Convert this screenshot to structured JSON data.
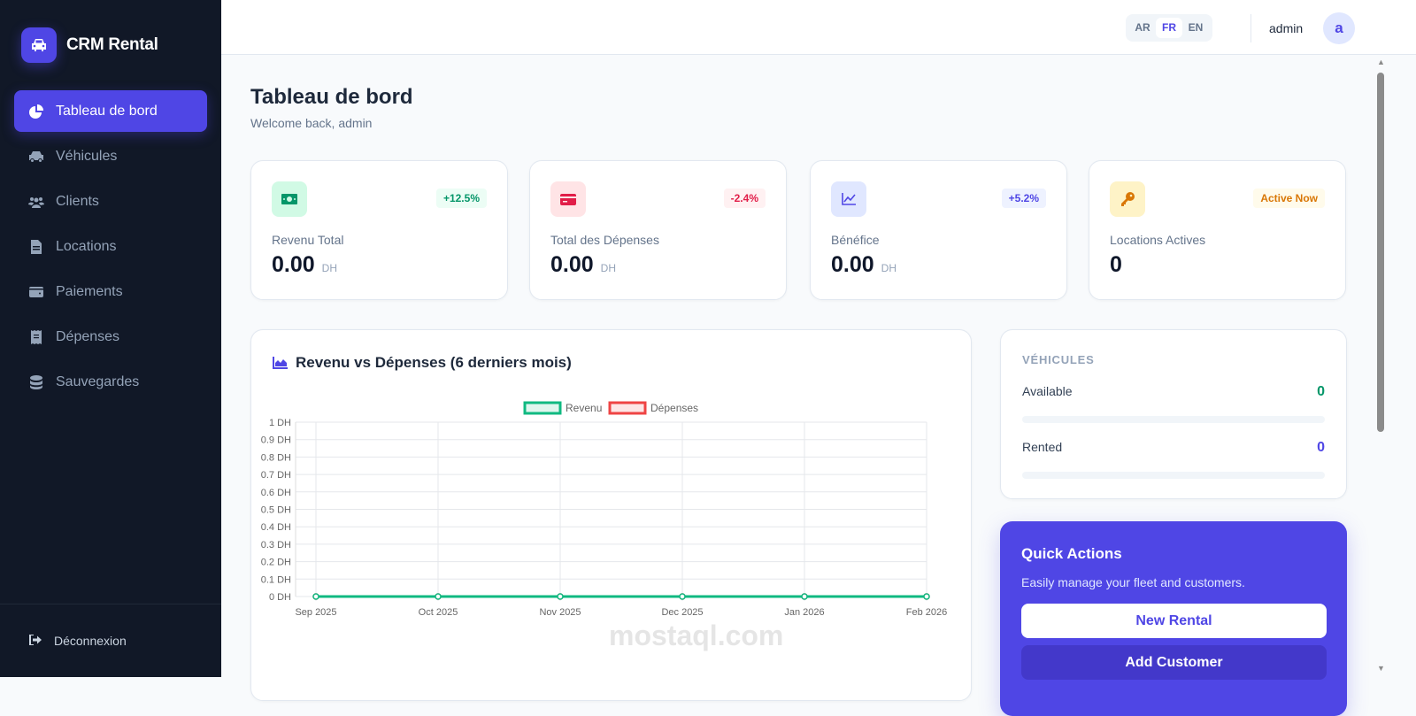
{
  "app": {
    "brand": "CRM Rental",
    "watermark": "mostaql.com"
  },
  "sidebar": {
    "items": [
      {
        "label": "Tableau de bord",
        "icon": "chart-pie-icon",
        "active": true
      },
      {
        "label": "Véhicules",
        "icon": "car-icon"
      },
      {
        "label": "Clients",
        "icon": "users-icon"
      },
      {
        "label": "Locations",
        "icon": "file-contract-icon"
      },
      {
        "label": "Paiements",
        "icon": "wallet-icon"
      },
      {
        "label": "Dépenses",
        "icon": "receipt-icon"
      },
      {
        "label": "Sauvegardes",
        "icon": "database-icon"
      }
    ],
    "logout": "Déconnexion"
  },
  "header": {
    "languages": [
      "AR",
      "FR",
      "EN"
    ],
    "selected_language": "FR",
    "username": "admin",
    "avatar_letter": "a"
  },
  "page": {
    "title": "Tableau de bord",
    "subtitle": "Welcome back, admin"
  },
  "stats": [
    {
      "label": "Revenu Total",
      "value": "0.00",
      "unit": "DH",
      "badge": "+12.5%",
      "icon": "money-bill-icon",
      "color": "#059669",
      "bg": "#d1fae5",
      "badge_bg": "#ecfdf5"
    },
    {
      "label": "Total des Dépenses",
      "value": "0.00",
      "unit": "DH",
      "badge": "-2.4%",
      "icon": "credit-card-icon",
      "color": "#e11d48",
      "bg": "#ffe4e6",
      "badge_bg": "#fff1f2"
    },
    {
      "label": "Bénéfice",
      "value": "0.00",
      "unit": "DH",
      "badge": "+5.2%",
      "icon": "chart-line-icon",
      "color": "#4f46e5",
      "bg": "#e0e7ff",
      "badge_bg": "#eef2ff"
    },
    {
      "label": "Locations Actives",
      "value": "0",
      "unit": "",
      "badge": "Active Now",
      "icon": "key-icon",
      "color": "#d97706",
      "bg": "#fef3c7",
      "badge_bg": "#fffbeb"
    }
  ],
  "chart_card": {
    "title": "Revenu vs Dépenses (6 derniers mois)"
  },
  "chart_data": {
    "type": "line",
    "categories": [
      "Sep 2025",
      "Oct 2025",
      "Nov 2025",
      "Dec 2025",
      "Jan 2026",
      "Feb 2026"
    ],
    "series": [
      {
        "name": "Revenu",
        "values": [
          0,
          0,
          0,
          0,
          0,
          0
        ],
        "color": "#10b981"
      },
      {
        "name": "Dépenses",
        "values": [
          0,
          0,
          0,
          0,
          0,
          0
        ],
        "color": "#ef4444"
      }
    ],
    "ylim": [
      0,
      1
    ],
    "yticks": [
      "0 DH",
      "0.1 DH",
      "0.2 DH",
      "0.3 DH",
      "0.4 DH",
      "0.5 DH",
      "0.6 DH",
      "0.7 DH",
      "0.8 DH",
      "0.9 DH",
      "1 DH"
    ],
    "grid": true,
    "legend": "top-center"
  },
  "vehicles": {
    "title": "VÉHICULES",
    "available_label": "Available",
    "available": "0",
    "rented_label": "Rented",
    "rented": "0",
    "available_fraction": 0,
    "rented_fraction": 0
  },
  "quick_actions": {
    "title": "Quick Actions",
    "description": "Easily manage your fleet and customers.",
    "new_rental": "New Rental",
    "add_customer": "Add Customer"
  }
}
